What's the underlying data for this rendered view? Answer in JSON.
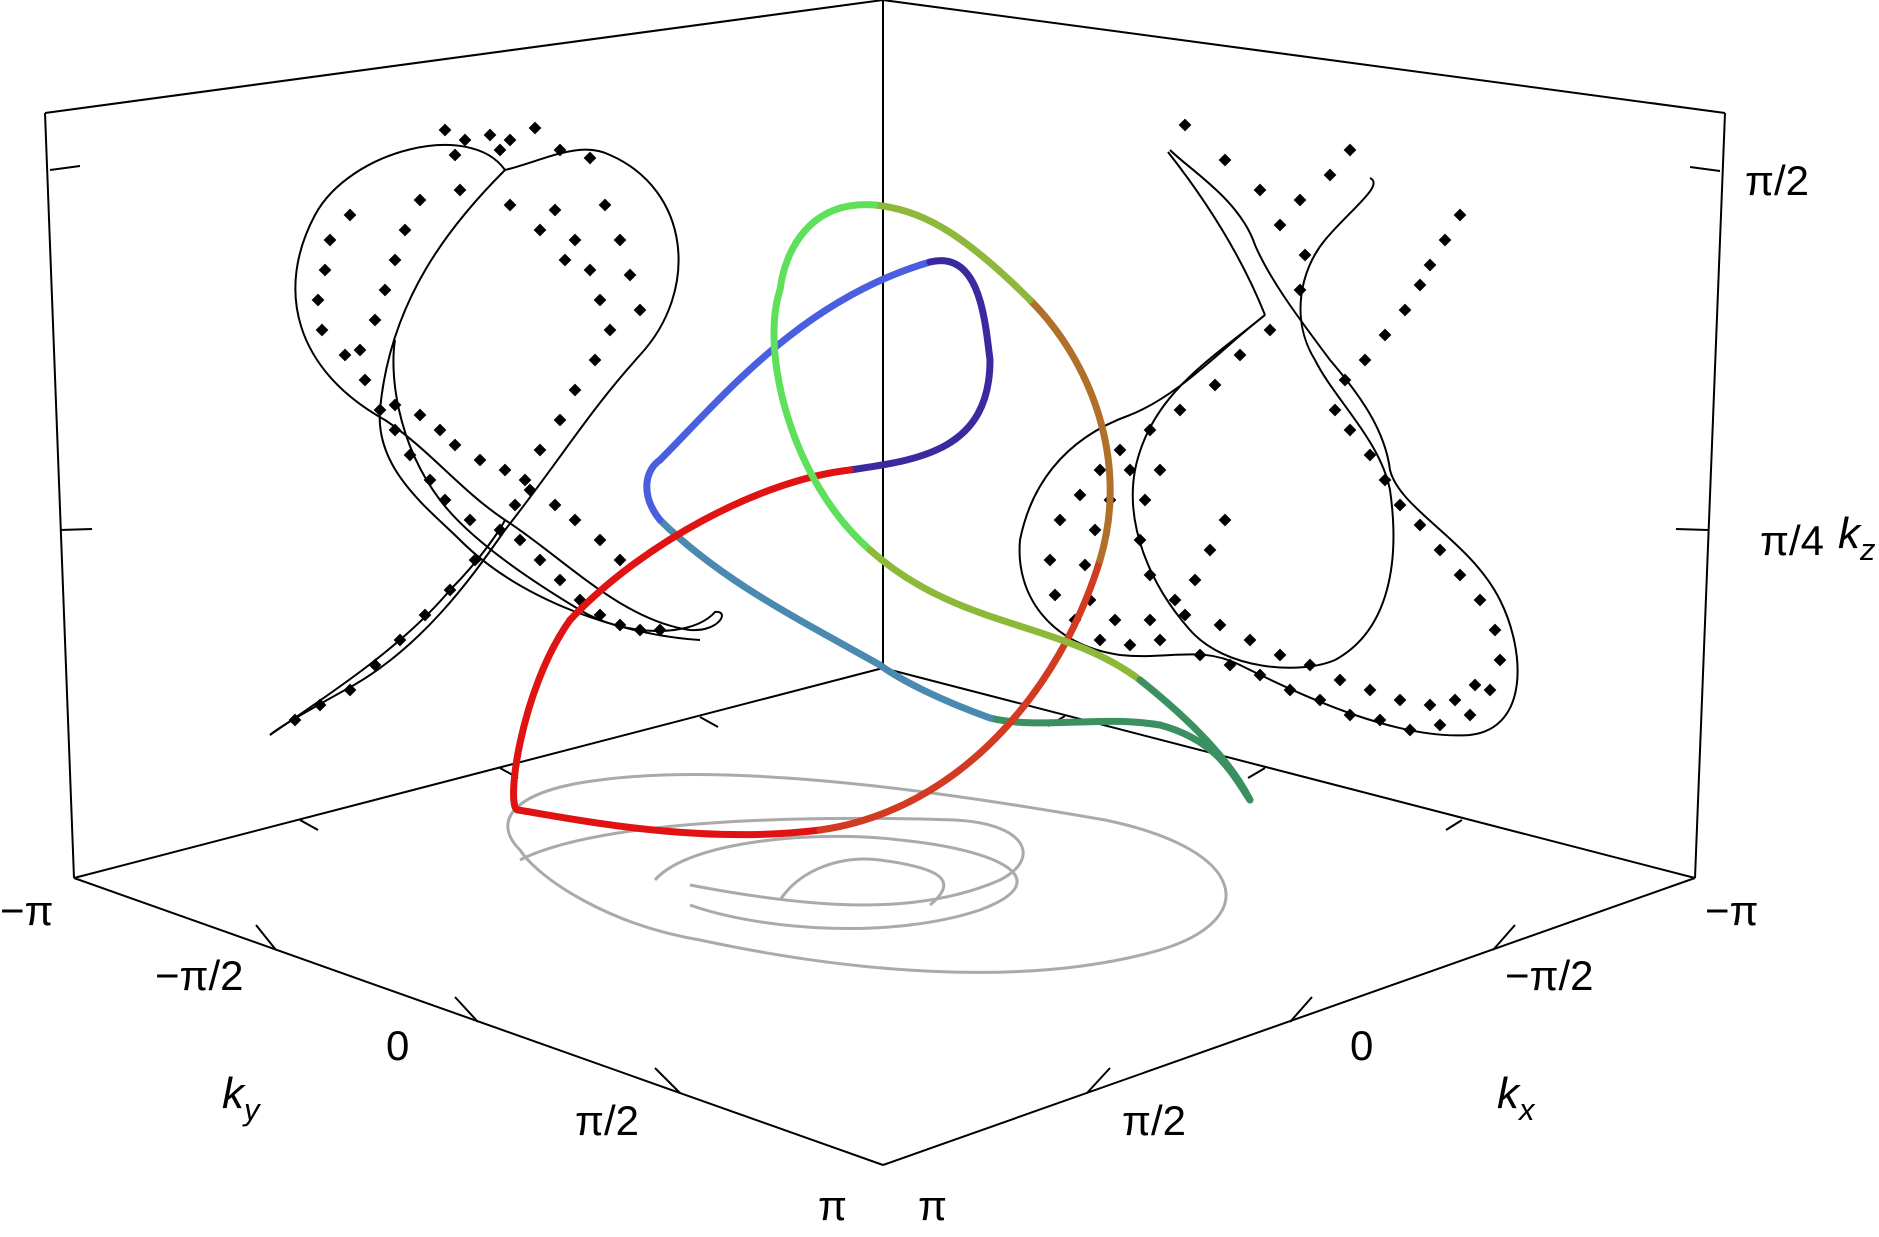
{
  "chart_data": {
    "type": "scatter",
    "title": "",
    "axes": {
      "kx": {
        "label_main": "k",
        "label_sub": "x",
        "ticks": [
          "−π",
          "−π/2",
          "0",
          "π/2",
          "π"
        ]
      },
      "ky": {
        "label_main": "k",
        "label_sub": "y",
        "ticks": [
          "−π",
          "−π/2",
          "0",
          "π/2",
          "π"
        ]
      },
      "kz": {
        "label_main": "k",
        "label_sub": "z",
        "ticks": [
          "π/4",
          "π/2"
        ]
      }
    },
    "curve_colors": [
      "#e01212",
      "#d23a22",
      "#b0702a",
      "#8db83a",
      "#5ee05a",
      "#7a5ad8",
      "#3a2aa0",
      "#4a5ee0",
      "#4a8ab0",
      "#3a9060"
    ],
    "projection_color": "#aaaaaa",
    "marker_color": "#000000",
    "background": "#ffffff"
  }
}
